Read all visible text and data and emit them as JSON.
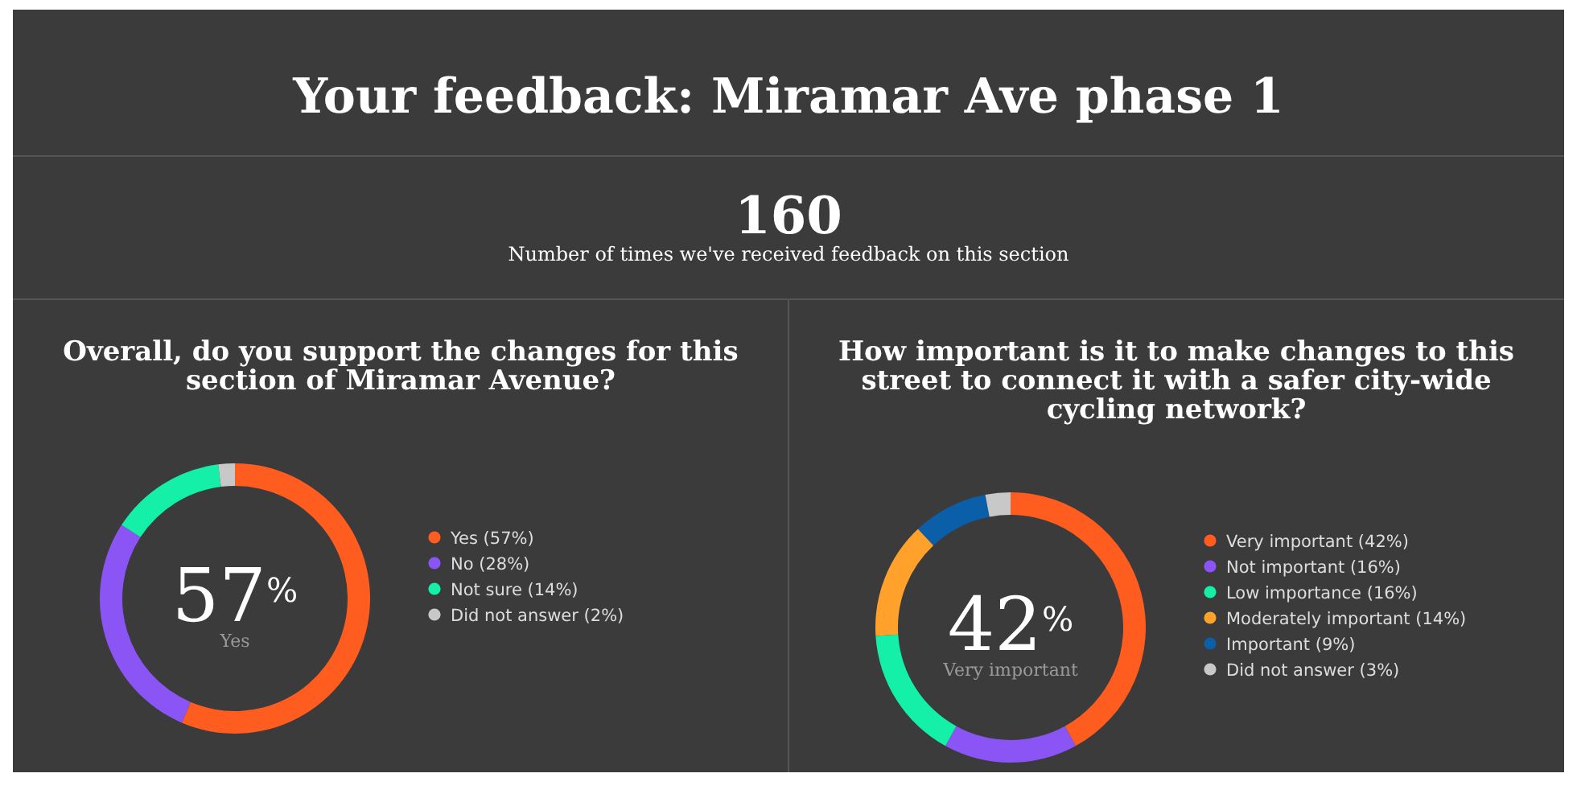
{
  "chart_data": [
    {
      "type": "other",
      "title": "Your feedback: Miramar Ave phase 1",
      "annotations": [
        "160",
        "Number of times we've received feedback on this section"
      ]
    },
    {
      "type": "donut",
      "title": "Overall, do you support the changes for this section of Miramar Avenue?",
      "categories": [
        "Yes",
        "No",
        "Not sure",
        "Did not answer"
      ],
      "values": [
        57,
        28,
        14,
        2
      ],
      "value_labels": [
        "(57%)",
        "(28%)",
        "(14%)",
        "(2%)"
      ],
      "colors": [
        "#ff5c1f",
        "#8b55f5",
        "#14f0a8",
        "#c8c8c8"
      ],
      "legend": "right",
      "annotations": [
        "57$^{%}$",
        "Yes"
      ]
    },
    {
      "type": "donut",
      "title": "How important is it to make changes to this street to connect it with a safer city-wide cycling network?",
      "categories": [
        "Very important",
        "Not important",
        "Low importance",
        "Moderately important",
        "Important",
        "Did not answer"
      ],
      "values": [
        42,
        16,
        16,
        14,
        9,
        3
      ],
      "value_labels": [
        "(42%)",
        "(16%)",
        "(16%)",
        "(14%)",
        "(9%)",
        "(3%)"
      ],
      "colors": [
        "#ff5c1f",
        "#8b55f5",
        "#14f0a8",
        "#ffa12b",
        "#0a5fa8",
        "#c8c8c8"
      ],
      "legend": "right",
      "annotations": [
        "42$^{%}$",
        "Very important"
      ]
    }
  ]
}
